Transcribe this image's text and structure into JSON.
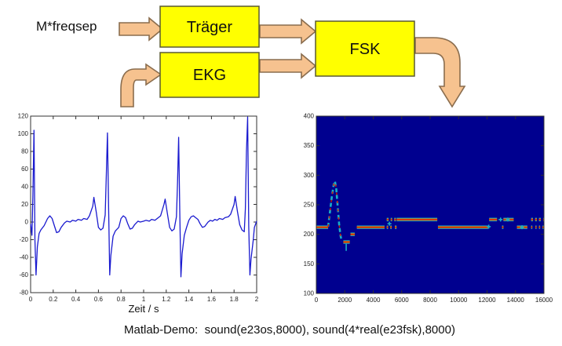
{
  "diagram": {
    "input_label": "M*freqsep",
    "blocks": [
      {
        "label": "Träger"
      },
      {
        "label": "EKG"
      },
      {
        "label": "FSK"
      }
    ],
    "colors": {
      "box_fill": "#FFFF00",
      "box_stroke": "#5a5a30",
      "arrow_fill": "#F6C28F",
      "arrow_stroke": "#8A6D4E"
    }
  },
  "caption": "Matlab-Demo:  sound(e23os,8000), sound(4*real(e23fsk),8000)",
  "chart_data": [
    {
      "type": "line",
      "title": "",
      "xlabel": "Zeit / s",
      "ylabel": "",
      "xlim": [
        0,
        2
      ],
      "ylim": [
        -80,
        120
      ],
      "xticks": [
        0,
        0.2,
        0.4,
        0.6,
        0.8,
        1,
        1.2,
        1.4,
        1.6,
        1.8,
        2
      ],
      "yticks": [
        -80,
        -60,
        -40,
        -20,
        0,
        20,
        40,
        60,
        80,
        100,
        120
      ],
      "grid": false,
      "colors": {
        "line": "#1A1ACF",
        "frame": "#303030"
      },
      "series": [
        {
          "name": "EKG",
          "points": [
            [
              0,
              -2
            ],
            [
              0.012,
              -15
            ],
            [
              0.02,
              30
            ],
            [
              0.03,
              104
            ],
            [
              0.038,
              -20
            ],
            [
              0.048,
              -60
            ],
            [
              0.06,
              -28
            ],
            [
              0.075,
              -13
            ],
            [
              0.09,
              -9
            ],
            [
              0.12,
              -4
            ],
            [
              0.15,
              4
            ],
            [
              0.17,
              7
            ],
            [
              0.19,
              4
            ],
            [
              0.21,
              -4
            ],
            [
              0.23,
              -12
            ],
            [
              0.25,
              -11
            ],
            [
              0.27,
              -6
            ],
            [
              0.3,
              -1
            ],
            [
              0.32,
              1
            ],
            [
              0.35,
              0
            ],
            [
              0.37,
              2
            ],
            [
              0.4,
              1
            ],
            [
              0.42,
              3
            ],
            [
              0.45,
              2
            ],
            [
              0.47,
              4
            ],
            [
              0.5,
              3
            ],
            [
              0.52,
              7
            ],
            [
              0.55,
              18
            ],
            [
              0.56,
              28
            ],
            [
              0.58,
              12
            ],
            [
              0.6,
              -6
            ],
            [
              0.62,
              -9
            ],
            [
              0.64,
              -7
            ],
            [
              0.66,
              8
            ],
            [
              0.67,
              55
            ],
            [
              0.68,
              101
            ],
            [
              0.69,
              15
            ],
            [
              0.7,
              -60
            ],
            [
              0.71,
              -38
            ],
            [
              0.73,
              -16
            ],
            [
              0.75,
              -10
            ],
            [
              0.78,
              -6
            ],
            [
              0.8,
              4
            ],
            [
              0.82,
              7
            ],
            [
              0.84,
              5
            ],
            [
              0.86,
              -2
            ],
            [
              0.88,
              -8
            ],
            [
              0.9,
              -7
            ],
            [
              0.92,
              -3
            ],
            [
              0.95,
              1
            ],
            [
              0.97,
              0
            ],
            [
              1,
              1
            ],
            [
              1.02,
              2
            ],
            [
              1.05,
              1
            ],
            [
              1.07,
              3
            ],
            [
              1.1,
              2
            ],
            [
              1.12,
              4
            ],
            [
              1.15,
              7
            ],
            [
              1.18,
              20
            ],
            [
              1.19,
              26
            ],
            [
              1.21,
              10
            ],
            [
              1.23,
              -6
            ],
            [
              1.25,
              -10
            ],
            [
              1.27,
              -8
            ],
            [
              1.29,
              6
            ],
            [
              1.3,
              45
            ],
            [
              1.31,
              96
            ],
            [
              1.32,
              8
            ],
            [
              1.33,
              -62
            ],
            [
              1.34,
              -36
            ],
            [
              1.36,
              -15
            ],
            [
              1.38,
              -6
            ],
            [
              1.4,
              2
            ],
            [
              1.42,
              6
            ],
            [
              1.44,
              7
            ],
            [
              1.46,
              5
            ],
            [
              1.48,
              3
            ],
            [
              1.5,
              -2
            ],
            [
              1.52,
              -6
            ],
            [
              1.54,
              -5
            ],
            [
              1.57,
              0
            ],
            [
              1.59,
              2
            ],
            [
              1.61,
              1
            ],
            [
              1.63,
              3
            ],
            [
              1.65,
              2
            ],
            [
              1.67,
              4
            ],
            [
              1.7,
              3
            ],
            [
              1.72,
              5
            ],
            [
              1.75,
              6
            ],
            [
              1.77,
              9
            ],
            [
              1.8,
              20
            ],
            [
              1.81,
              29
            ],
            [
              1.83,
              12
            ],
            [
              1.85,
              -3
            ],
            [
              1.87,
              -9
            ],
            [
              1.89,
              -11
            ],
            [
              1.9,
              15
            ],
            [
              1.91,
              80
            ],
            [
              1.92,
              119
            ],
            [
              1.93,
              -5
            ],
            [
              1.94,
              -60
            ],
            [
              1.95,
              -42
            ],
            [
              1.97,
              -20
            ],
            [
              1.98,
              -6
            ],
            [
              2,
              1
            ]
          ]
        }
      ]
    },
    {
      "type": "heatmap",
      "title": "",
      "xlabel": "",
      "ylabel": "",
      "xlim": [
        0,
        16000
      ],
      "ylim": [
        100,
        400
      ],
      "xticks": [
        0,
        2000,
        4000,
        6000,
        8000,
        10000,
        12000,
        14000,
        16000
      ],
      "yticks": [
        100,
        150,
        200,
        250,
        300,
        350,
        400
      ],
      "grid": false,
      "colors": {
        "bg": "#00008F",
        "core": "#CE1A00",
        "mid": "#EFA400",
        "halo": "#17AFC9",
        "frame": "#303030"
      },
      "levels": {
        "low": 212,
        "high": 225
      },
      "segments": [
        [
          0,
          830,
          212
        ],
        [
          1900,
          2350,
          187
        ],
        [
          2400,
          2700,
          200
        ],
        [
          2850,
          4800,
          212
        ],
        [
          4950,
          5050,
          212
        ],
        [
          5200,
          5300,
          212
        ],
        [
          5520,
          5640,
          212
        ],
        [
          4950,
          5080,
          225
        ],
        [
          5230,
          5330,
          225
        ],
        [
          5480,
          5600,
          225
        ],
        [
          5650,
          8500,
          225
        ],
        [
          8550,
          12100,
          212
        ],
        [
          12150,
          12700,
          225
        ],
        [
          13150,
          13420,
          225
        ],
        [
          13500,
          13870,
          225
        ],
        [
          13050,
          13150,
          212
        ],
        [
          14100,
          14830,
          212
        ],
        [
          15100,
          15230,
          225
        ],
        [
          15380,
          15500,
          225
        ],
        [
          15650,
          15780,
          225
        ],
        [
          15950,
          16000,
          225
        ],
        [
          15100,
          15180,
          212
        ],
        [
          15400,
          15480,
          212
        ],
        [
          15650,
          15730,
          212
        ],
        [
          15900,
          16000,
          212
        ]
      ],
      "sweep": [
        [
          830,
          213
        ],
        [
          950,
          236
        ],
        [
          1080,
          262
        ],
        [
          1220,
          284
        ],
        [
          1310,
          290
        ],
        [
          1400,
          277
        ],
        [
          1500,
          248
        ],
        [
          1600,
          218
        ],
        [
          1700,
          198
        ],
        [
          1790,
          188
        ]
      ],
      "marks": [
        [
          5140,
          218
        ],
        [
          12120,
          213
        ],
        [
          12950,
          225
        ],
        [
          13460,
          225
        ],
        [
          14460,
          212
        ]
      ],
      "dip_tick": [
        2100,
        172,
        184
      ]
    }
  ]
}
